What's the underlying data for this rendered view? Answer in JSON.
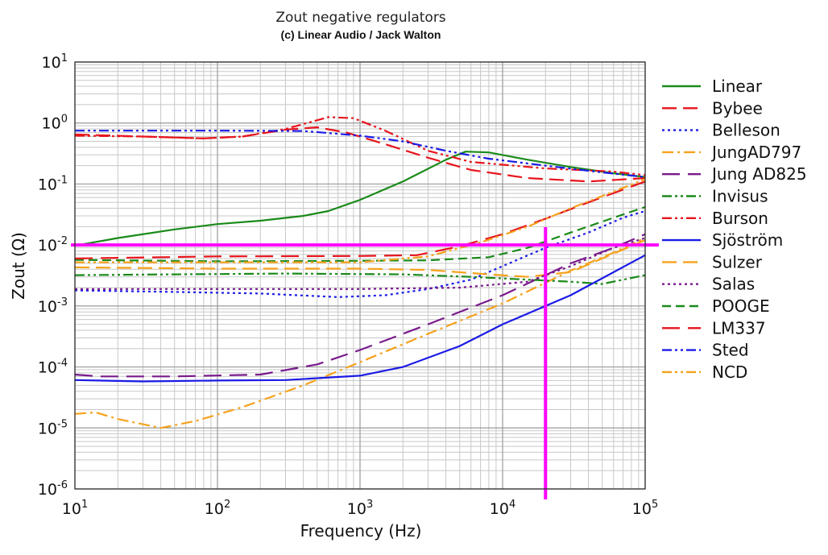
{
  "chart_data": {
    "type": "line",
    "title": "Zout negative regulators",
    "subtitle": "(c) Linear Audio / Jack Walton",
    "xlabel": "Frequency (Hz)",
    "ylabel": "Zout (Ω)",
    "xscale": "log",
    "yscale": "log",
    "xlim": [
      10,
      100000
    ],
    "ylim": [
      1e-06,
      10
    ],
    "x_ticks": [
      {
        "base": "10",
        "exp": "1"
      },
      {
        "base": "10",
        "exp": "2"
      },
      {
        "base": "10",
        "exp": "3"
      },
      {
        "base": "10",
        "exp": "4"
      },
      {
        "base": "10",
        "exp": "5"
      }
    ],
    "y_ticks": [
      {
        "base": "10",
        "exp": "-6"
      },
      {
        "base": "10",
        "exp": "-5"
      },
      {
        "base": "10",
        "exp": "-4"
      },
      {
        "base": "10",
        "exp": "-3"
      },
      {
        "base": "10",
        "exp": "-2"
      },
      {
        "base": "10",
        "exp": "-1"
      },
      {
        "base": "10",
        "exp": "0"
      },
      {
        "base": "10",
        "exp": "1"
      }
    ],
    "grid": true,
    "legend_position": "right",
    "reference_lines": {
      "color": "#ff00ff",
      "horizontal_y": 0.01,
      "vertical_x": 20000
    },
    "series": [
      {
        "name": "Linear",
        "color": "#1a8a1a",
        "dash": "solid",
        "points": [
          [
            10,
            0.0097
          ],
          [
            20,
            0.013
          ],
          [
            50,
            0.018
          ],
          [
            100,
            0.022
          ],
          [
            200,
            0.025
          ],
          [
            400,
            0.03
          ],
          [
            600,
            0.036
          ],
          [
            1000,
            0.055
          ],
          [
            2000,
            0.11
          ],
          [
            4000,
            0.25
          ],
          [
            5500,
            0.34
          ],
          [
            8000,
            0.33
          ],
          [
            15000,
            0.25
          ],
          [
            30000,
            0.19
          ],
          [
            60000,
            0.15
          ],
          [
            100000,
            0.13
          ]
        ]
      },
      {
        "name": "Bybee",
        "color": "#e8141c",
        "dash": "long",
        "points": [
          [
            10,
            0.65
          ],
          [
            30,
            0.6
          ],
          [
            80,
            0.56
          ],
          [
            150,
            0.6
          ],
          [
            300,
            0.78
          ],
          [
            500,
            0.85
          ],
          [
            800,
            0.7
          ],
          [
            1500,
            0.45
          ],
          [
            3000,
            0.27
          ],
          [
            6000,
            0.17
          ],
          [
            15000,
            0.125
          ],
          [
            40000,
            0.11
          ],
          [
            100000,
            0.125
          ]
        ]
      },
      {
        "name": "Belleson",
        "color": "#1a1ae6",
        "dash": "dot",
        "points": [
          [
            10,
            0.0018
          ],
          [
            50,
            0.0017
          ],
          [
            200,
            0.0016
          ],
          [
            700,
            0.0014
          ],
          [
            1500,
            0.0015
          ],
          [
            3000,
            0.0019
          ],
          [
            6000,
            0.0027
          ],
          [
            10000,
            0.0045
          ],
          [
            20000,
            0.009
          ],
          [
            40000,
            0.016
          ],
          [
            70000,
            0.028
          ],
          [
            100000,
            0.036
          ]
        ]
      },
      {
        "name": "JungAD797",
        "color": "#f5a21c",
        "dash": "dashdot",
        "points": [
          [
            10,
            1.7e-05
          ],
          [
            14,
            1.8e-05
          ],
          [
            20,
            1.4e-05
          ],
          [
            40,
            1e-05
          ],
          [
            70,
            1.3e-05
          ],
          [
            150,
            2.2e-05
          ],
          [
            400,
            5e-05
          ],
          [
            1000,
            0.00012
          ],
          [
            3000,
            0.00035
          ],
          [
            10000,
            0.0011
          ],
          [
            30000,
            0.0038
          ],
          [
            60000,
            0.0075
          ],
          [
            100000,
            0.013
          ]
        ]
      },
      {
        "name": "Jung AD825",
        "color": "#7a1a8c",
        "dash": "longlong",
        "points": [
          [
            10,
            7.5e-05
          ],
          [
            15,
            7e-05
          ],
          [
            50,
            7e-05
          ],
          [
            200,
            7.5e-05
          ],
          [
            500,
            0.00011
          ],
          [
            1000,
            0.00019
          ],
          [
            3000,
            0.0005
          ],
          [
            10000,
            0.0015
          ],
          [
            30000,
            0.005
          ],
          [
            60000,
            0.009
          ],
          [
            100000,
            0.015
          ]
        ]
      },
      {
        "name": "Invisus",
        "color": "#1a8a1a",
        "dash": "dashdotdot",
        "points": [
          [
            10,
            0.0032
          ],
          [
            50,
            0.0033
          ],
          [
            300,
            0.0034
          ],
          [
            2000,
            0.0033
          ],
          [
            6000,
            0.003
          ],
          [
            15000,
            0.0027
          ],
          [
            30000,
            0.0025
          ],
          [
            50000,
            0.0023
          ],
          [
            100000,
            0.0032
          ]
        ]
      },
      {
        "name": "Burson",
        "color": "#e8141c",
        "dash": "dashdotdot",
        "points": [
          [
            10,
            0.62
          ],
          [
            30,
            0.6
          ],
          [
            80,
            0.56
          ],
          [
            150,
            0.6
          ],
          [
            300,
            0.8
          ],
          [
            600,
            1.25
          ],
          [
            900,
            1.2
          ],
          [
            1500,
            0.75
          ],
          [
            3000,
            0.35
          ],
          [
            6000,
            0.23
          ],
          [
            20000,
            0.18
          ],
          [
            60000,
            0.16
          ],
          [
            100000,
            0.14
          ]
        ]
      },
      {
        "name": "Sjöström",
        "color": "#1a1ae6",
        "dash": "solid",
        "points": [
          [
            10,
            6.1e-05
          ],
          [
            30,
            5.8e-05
          ],
          [
            100,
            6e-05
          ],
          [
            300,
            6.1e-05
          ],
          [
            1000,
            7.2e-05
          ],
          [
            2000,
            0.0001
          ],
          [
            5000,
            0.00022
          ],
          [
            10000,
            0.0005
          ],
          [
            30000,
            0.0015
          ],
          [
            100000,
            0.0068
          ]
        ]
      },
      {
        "name": "Sulzer",
        "color": "#f5a21c",
        "dash": "long",
        "points": [
          [
            10,
            0.0043
          ],
          [
            100,
            0.0041
          ],
          [
            1000,
            0.0041
          ],
          [
            3000,
            0.0039
          ],
          [
            8000,
            0.0033
          ],
          [
            15000,
            0.003
          ],
          [
            30000,
            0.0036
          ],
          [
            50000,
            0.006
          ],
          [
            100000,
            0.012
          ]
        ]
      },
      {
        "name": "Salas",
        "color": "#7a1a8c",
        "dash": "dot",
        "points": [
          [
            10,
            0.0019
          ],
          [
            100,
            0.0019
          ],
          [
            1000,
            0.0019
          ],
          [
            5000,
            0.002
          ],
          [
            15000,
            0.0025
          ],
          [
            30000,
            0.0045
          ],
          [
            60000,
            0.009
          ],
          [
            100000,
            0.013
          ]
        ]
      },
      {
        "name": "POOGE",
        "color": "#1a8a1a",
        "dash": "dash",
        "points": [
          [
            10,
            0.0057
          ],
          [
            100,
            0.0054
          ],
          [
            1000,
            0.0055
          ],
          [
            3000,
            0.0056
          ],
          [
            8000,
            0.0063
          ],
          [
            15000,
            0.009
          ],
          [
            30000,
            0.016
          ],
          [
            60000,
            0.028
          ],
          [
            100000,
            0.042
          ]
        ]
      },
      {
        "name": "LM337",
        "color": "#e8141c",
        "dash": "longlong",
        "points": [
          [
            10,
            0.006
          ],
          [
            100,
            0.0065
          ],
          [
            1000,
            0.0066
          ],
          [
            2500,
            0.0068
          ],
          [
            5000,
            0.0095
          ],
          [
            10000,
            0.015
          ],
          [
            20000,
            0.027
          ],
          [
            40000,
            0.05
          ],
          [
            100000,
            0.11
          ]
        ]
      },
      {
        "name": "Sted",
        "color": "#1a1ae6",
        "dash": "dashdotdot",
        "points": [
          [
            10,
            0.75
          ],
          [
            100,
            0.75
          ],
          [
            400,
            0.74
          ],
          [
            1000,
            0.62
          ],
          [
            2000,
            0.5
          ],
          [
            4000,
            0.35
          ],
          [
            8000,
            0.26
          ],
          [
            20000,
            0.2
          ],
          [
            50000,
            0.155
          ],
          [
            100000,
            0.13
          ]
        ]
      },
      {
        "name": "NCD",
        "color": "#f5a21c",
        "dash": "dashdotdot",
        "points": [
          [
            10,
            0.0052
          ],
          [
            100,
            0.0052
          ],
          [
            1000,
            0.0052
          ],
          [
            3000,
            0.0065
          ],
          [
            7000,
            0.011
          ],
          [
            15000,
            0.02
          ],
          [
            30000,
            0.04
          ],
          [
            60000,
            0.075
          ],
          [
            100000,
            0.12
          ]
        ]
      }
    ]
  }
}
